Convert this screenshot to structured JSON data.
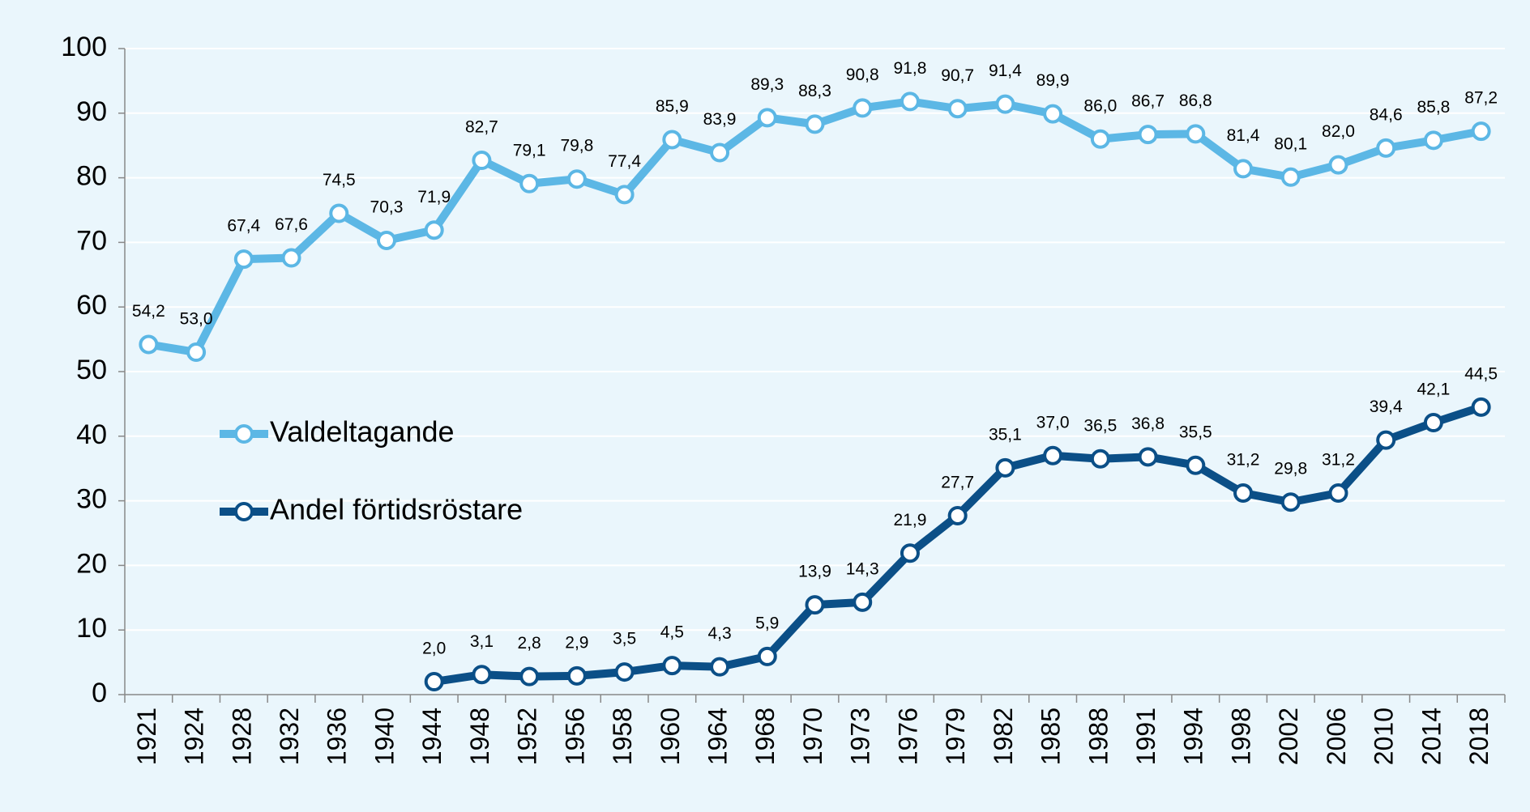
{
  "chart_data": {
    "type": "line",
    "categories": [
      "1921",
      "1924",
      "1928",
      "1932",
      "1936",
      "1940",
      "1944",
      "1948",
      "1952",
      "1956",
      "1958",
      "1960",
      "1964",
      "1968",
      "1970",
      "1973",
      "1976",
      "1979",
      "1982",
      "1985",
      "1988",
      "1991",
      "1994",
      "1998",
      "2002",
      "2006",
      "2010",
      "2014",
      "2018"
    ],
    "series": [
      {
        "name": "Valdeltagande",
        "color": "#5cb7e5",
        "values": [
          54.2,
          53.0,
          67.4,
          67.6,
          74.5,
          70.3,
          71.9,
          82.7,
          79.1,
          79.8,
          77.4,
          85.9,
          83.9,
          89.3,
          88.3,
          90.8,
          91.8,
          90.7,
          91.4,
          89.9,
          86.0,
          86.7,
          86.8,
          81.4,
          80.1,
          82.0,
          84.6,
          85.8,
          87.2
        ],
        "value_labels": [
          "54,2",
          "53,0",
          "67,4",
          "67,6",
          "74,5",
          "70,3",
          "71,9",
          "82,7",
          "79,1",
          "79,8",
          "77,4",
          "85,9",
          "83,9",
          "89,3",
          "88,3",
          "90,8",
          "91,8",
          "90,7",
          "91,4",
          "89,9",
          "86,0",
          "86,7",
          "86,8",
          "81,4",
          "80,1",
          "82,0",
          "84,6",
          "85,8",
          "87,2"
        ]
      },
      {
        "name": "Andel förtidsröstare",
        "color": "#0b4f87",
        "values": [
          null,
          null,
          null,
          null,
          null,
          null,
          2.0,
          3.1,
          2.8,
          2.9,
          3.5,
          4.5,
          4.3,
          5.9,
          13.9,
          14.3,
          21.9,
          27.7,
          35.1,
          37.0,
          36.5,
          36.8,
          35.5,
          31.2,
          29.8,
          31.2,
          39.4,
          42.1,
          44.5
        ],
        "value_labels": [
          null,
          null,
          null,
          null,
          null,
          null,
          "2,0",
          "3,1",
          "2,8",
          "2,9",
          "3,5",
          "4,5",
          "4,3",
          "5,9",
          "13,9",
          "14,3",
          "21,9",
          "27,7",
          "35,1",
          "37,0",
          "36,5",
          "36,8",
          "35,5",
          "31,2",
          "29,8",
          "31,2",
          "39,4",
          "42,1",
          "44,5"
        ]
      }
    ],
    "ylim": [
      0,
      100
    ],
    "yticks": [
      0,
      10,
      20,
      30,
      40,
      50,
      60,
      70,
      80,
      90,
      100
    ],
    "grid": true,
    "legend": "left"
  }
}
